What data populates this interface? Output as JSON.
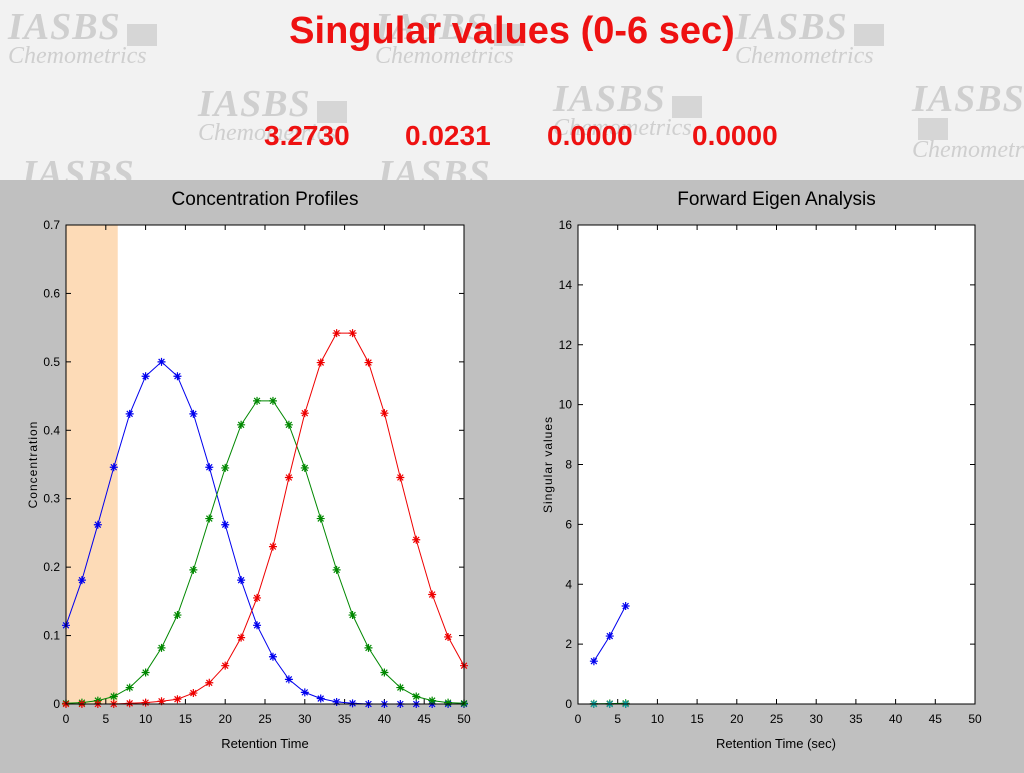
{
  "slide": {
    "title": "Singular values  (0-6 sec)",
    "singular_values": [
      "3.2730",
      "0.0231",
      "0.0000",
      "0.0000"
    ],
    "watermark": {
      "line1": "IASBS",
      "line2": "Chemometrics"
    },
    "colors": {
      "title": "#ee1111",
      "background": "#c0c0c0",
      "highlight": "#fdd5aa"
    }
  },
  "chart_data": [
    {
      "type": "line",
      "title": "Concentration Profiles",
      "xlabel": "Retention Time",
      "ylabel": "Concentration",
      "xlim": [
        0,
        50
      ],
      "ylim": [
        0,
        0.7
      ],
      "xticks": [
        0,
        5,
        10,
        15,
        20,
        25,
        30,
        35,
        40,
        45,
        50
      ],
      "yticks": [
        0,
        0.1,
        0.2,
        0.3,
        0.4,
        0.5,
        0.6,
        0.7
      ],
      "highlight_range": [
        0,
        6.5
      ],
      "grid": false,
      "marker": "*",
      "x": [
        0,
        2,
        4,
        6,
        8,
        10,
        12,
        14,
        16,
        18,
        20,
        22,
        24,
        26,
        28,
        30,
        32,
        34,
        36,
        38,
        40,
        42,
        44,
        46,
        48,
        50
      ],
      "series": [
        {
          "color": "#0000ee",
          "values": [
            0.115,
            0.181,
            0.262,
            0.346,
            0.424,
            0.479,
            0.5,
            0.479,
            0.424,
            0.346,
            0.262,
            0.181,
            0.115,
            0.069,
            0.036,
            0.017,
            0.008,
            0.003,
            0.001,
            0,
            0,
            0,
            0,
            0,
            0,
            0
          ]
        },
        {
          "color": "#008800",
          "values": [
            0.001,
            0.002,
            0.005,
            0.011,
            0.024,
            0.046,
            0.082,
            0.13,
            0.196,
            0.271,
            0.345,
            0.408,
            0.443,
            0.443,
            0.408,
            0.345,
            0.271,
            0.196,
            0.13,
            0.082,
            0.046,
            0.024,
            0.011,
            0.005,
            0.002,
            0.001
          ]
        },
        {
          "color": "#ee0000",
          "values": [
            0,
            0,
            0,
            0,
            0.001,
            0.002,
            0.004,
            0.007,
            0.016,
            0.031,
            0.056,
            0.097,
            0.155,
            0.23,
            0.331,
            0.425,
            0.499,
            0.542,
            0.542,
            0.499,
            0.425,
            0.331,
            0.24,
            0.16,
            0.098,
            0.056
          ]
        }
      ]
    },
    {
      "type": "line",
      "title": "Forward Eigen Analysis",
      "xlabel": "Retention Time (sec)",
      "ylabel": "Singular values",
      "xlim": [
        0,
        50
      ],
      "ylim": [
        0,
        16
      ],
      "xticks": [
        0,
        5,
        10,
        15,
        20,
        25,
        30,
        35,
        40,
        45,
        50
      ],
      "yticks": [
        0,
        2,
        4,
        6,
        8,
        10,
        12,
        14,
        16
      ],
      "grid": false,
      "marker": "*",
      "x": [
        2,
        4,
        6
      ],
      "series": [
        {
          "color": "#0000ee",
          "values": [
            1.43,
            2.27,
            3.273
          ]
        },
        {
          "color": "#008800",
          "values": [
            0.01,
            0.015,
            0.023
          ]
        },
        {
          "color": "#ee0000",
          "values": [
            0,
            0,
            0
          ]
        },
        {
          "color": "#00aaaa",
          "values": [
            0,
            0,
            0
          ]
        }
      ]
    }
  ]
}
